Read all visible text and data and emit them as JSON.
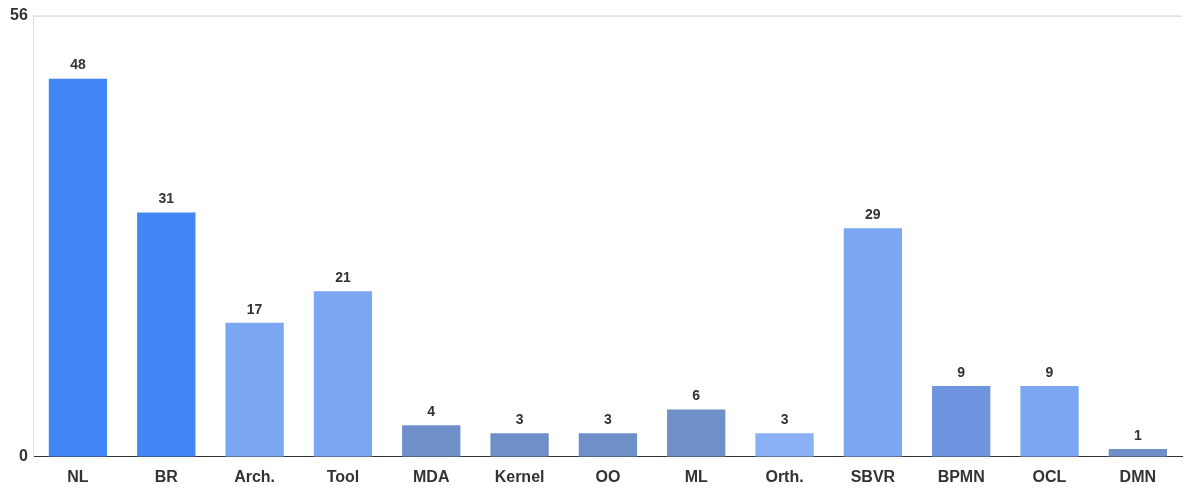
{
  "chart_data": {
    "type": "bar",
    "categories": [
      "NL",
      "BR",
      "Arch.",
      "Tool",
      "MDA",
      "Kernel",
      "OO",
      "ML",
      "Orth.",
      "SBVR",
      "BPMN",
      "OCL",
      "DMN"
    ],
    "values": [
      48,
      31,
      17,
      21,
      4,
      3,
      3,
      6,
      3,
      29,
      9,
      9,
      1
    ],
    "colors": [
      "#4285f4",
      "#4285f4",
      "#7aa6f2",
      "#7aa6f2",
      "#6f8fc9",
      "#6f8fc9",
      "#6f8fc9",
      "#6f8fc9",
      "#8ab0f5",
      "#7aa6f2",
      "#6f94e0",
      "#7aa6f2",
      "#6f8fc9"
    ],
    "ylim": [
      0,
      56
    ],
    "yticks": [
      0,
      56
    ],
    "data_labels": true
  }
}
